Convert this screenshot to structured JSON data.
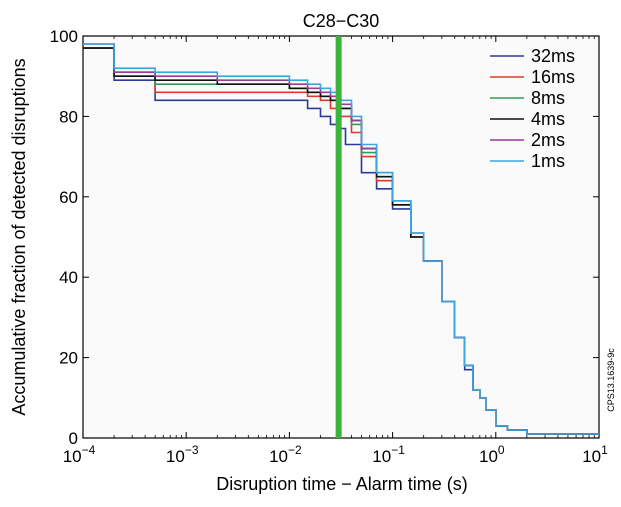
{
  "chart_data": {
    "type": "line",
    "title": "C28−C30",
    "xlabel": "Disruption time − Alarm time (s)",
    "ylabel": "Accumulative fraction of detected disruptions",
    "xscale": "log",
    "xlim": [
      0.0001,
      10
    ],
    "ylim": [
      0,
      100
    ],
    "x_ticks": [
      {
        "base": "10",
        "exp": "−4"
      },
      {
        "base": "10",
        "exp": "−3"
      },
      {
        "base": "10",
        "exp": "−2"
      },
      {
        "base": "10",
        "exp": "−1"
      },
      {
        "base": "10",
        "exp": "0"
      },
      {
        "base": "10",
        "exp": "1"
      }
    ],
    "y_ticks": [
      "0",
      "20",
      "40",
      "60",
      "80",
      "100"
    ],
    "legend_position": "top-right",
    "grid": false,
    "vertical_marker": {
      "x": 0.03,
      "color": "#3cb33a"
    },
    "series": [
      {
        "name": "32ms",
        "color": "#2b3a98",
        "x": [
          0.0001,
          0.0002,
          0.0005,
          0.002,
          0.01,
          0.015,
          0.02,
          0.025,
          0.03,
          0.035,
          0.05,
          0.07,
          0.1,
          0.15,
          0.2,
          0.3,
          0.4,
          0.5,
          0.6,
          0.7,
          0.8,
          1.0,
          1.3,
          2,
          10
        ],
        "y": [
          97,
          89,
          84,
          84,
          84,
          82,
          80,
          78,
          77,
          73,
          66,
          62,
          57,
          50,
          44,
          34,
          25,
          17,
          12,
          10,
          7,
          3,
          2,
          1,
          1
        ]
      },
      {
        "name": "16ms",
        "color": "#e03a2c",
        "x": [
          0.0001,
          0.0002,
          0.0005,
          0.002,
          0.01,
          0.015,
          0.02,
          0.025,
          0.03,
          0.04,
          0.05,
          0.07,
          0.1,
          0.15,
          0.2,
          0.3,
          0.4,
          0.5,
          0.6,
          0.7,
          0.8,
          1.0,
          1.3,
          2,
          10
        ],
        "y": [
          97,
          90,
          86,
          86,
          86,
          85,
          84,
          82,
          80,
          76,
          70,
          64,
          58,
          50,
          44,
          34,
          25,
          18,
          12,
          10,
          7,
          3,
          2,
          1,
          1
        ]
      },
      {
        "name": "8ms",
        "color": "#2e9e5a",
        "x": [
          0.0001,
          0.0002,
          0.0005,
          0.002,
          0.01,
          0.015,
          0.02,
          0.025,
          0.03,
          0.04,
          0.05,
          0.07,
          0.1,
          0.15,
          0.2,
          0.3,
          0.4,
          0.5,
          0.6,
          0.7,
          0.8,
          1.0,
          1.3,
          2,
          10
        ],
        "y": [
          97,
          91,
          88,
          88,
          87,
          86,
          85,
          84,
          82,
          78,
          71,
          65,
          58,
          50,
          44,
          34,
          25,
          18,
          12,
          10,
          7,
          3,
          2,
          1,
          1
        ]
      },
      {
        "name": "4ms",
        "color": "#111111",
        "x": [
          0.0001,
          0.0002,
          0.0005,
          0.002,
          0.01,
          0.015,
          0.02,
          0.025,
          0.03,
          0.04,
          0.05,
          0.07,
          0.1,
          0.15,
          0.2,
          0.3,
          0.4,
          0.5,
          0.6,
          0.7,
          0.8,
          1.0,
          1.3,
          2,
          10
        ],
        "y": [
          97,
          90,
          89,
          88,
          87,
          86,
          85,
          84,
          82,
          79,
          72,
          65,
          58,
          50,
          44,
          34,
          25,
          18,
          12,
          10,
          7,
          3,
          2,
          1,
          1
        ]
      },
      {
        "name": "2ms",
        "color": "#9b3b9e",
        "x": [
          0.0001,
          0.0002,
          0.0005,
          0.002,
          0.01,
          0.015,
          0.02,
          0.025,
          0.03,
          0.04,
          0.05,
          0.07,
          0.1,
          0.15,
          0.2,
          0.3,
          0.4,
          0.5,
          0.6,
          0.7,
          0.8,
          1.0,
          1.3,
          2,
          10
        ],
        "y": [
          98,
          91,
          90,
          89,
          88,
          87,
          86,
          85,
          83,
          79,
          72,
          66,
          59,
          51,
          44,
          34,
          25,
          18,
          12,
          10,
          7,
          3,
          2,
          1,
          1
        ]
      },
      {
        "name": "1ms",
        "color": "#3aa8e0",
        "x": [
          0.0001,
          0.0002,
          0.0005,
          0.002,
          0.01,
          0.015,
          0.02,
          0.025,
          0.03,
          0.04,
          0.05,
          0.07,
          0.1,
          0.15,
          0.2,
          0.3,
          0.4,
          0.5,
          0.6,
          0.7,
          0.8,
          1.0,
          1.3,
          2,
          10
        ],
        "y": [
          98,
          92,
          91,
          90,
          89,
          88,
          87,
          86,
          84,
          80,
          73,
          66,
          59,
          51,
          44,
          34,
          25,
          18,
          12,
          10,
          7,
          3,
          2,
          1,
          1
        ]
      }
    ],
    "annotation": "CPS13.1639-9c"
  }
}
